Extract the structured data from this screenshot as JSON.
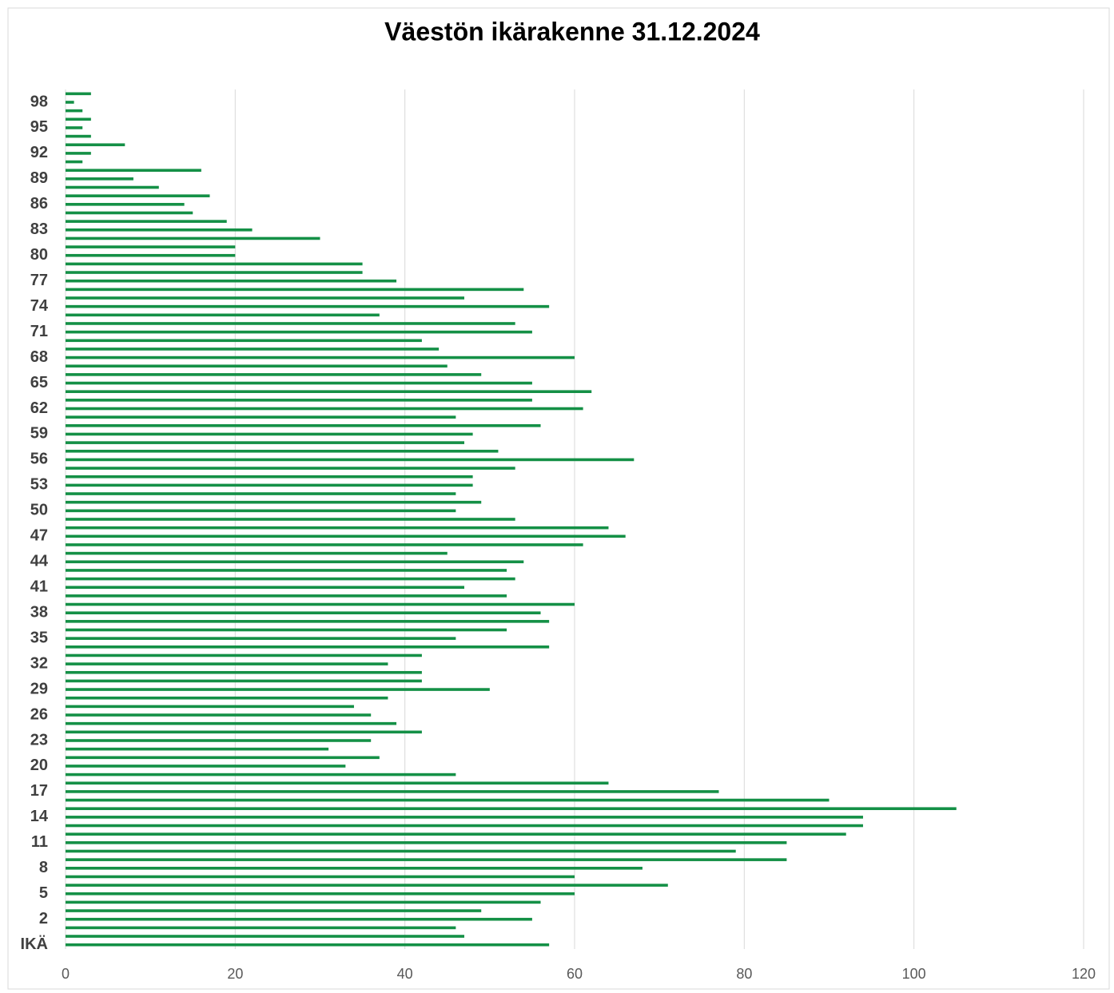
{
  "chart_data": {
    "type": "hbar",
    "title": "Väestön ikärakenne 31.12.2024",
    "categories": [
      "IKÄ",
      null,
      null,
      "2",
      null,
      null,
      "5",
      null,
      null,
      "8",
      null,
      null,
      "11",
      null,
      null,
      "14",
      null,
      null,
      "17",
      null,
      null,
      "20",
      null,
      null,
      "23",
      null,
      null,
      "26",
      null,
      null,
      "29",
      null,
      null,
      "32",
      null,
      null,
      "35",
      null,
      null,
      "38",
      null,
      null,
      "41",
      null,
      null,
      "44",
      null,
      null,
      "47",
      null,
      null,
      "50",
      null,
      null,
      "53",
      null,
      null,
      "56",
      null,
      null,
      "59",
      null,
      null,
      "62",
      null,
      null,
      "65",
      null,
      null,
      "68",
      null,
      null,
      "71",
      null,
      null,
      "74",
      null,
      null,
      "77",
      null,
      null,
      "80",
      null,
      null,
      "83",
      null,
      null,
      "86",
      null,
      null,
      "89",
      null,
      null,
      "92",
      null,
      null,
      "95",
      null,
      null,
      "98",
      null
    ],
    "values": [
      57,
      47,
      46,
      55,
      49,
      56,
      60,
      71,
      60,
      68,
      85,
      79,
      85,
      92,
      94,
      94,
      105,
      90,
      77,
      64,
      46,
      33,
      37,
      31,
      36,
      42,
      39,
      36,
      34,
      38,
      50,
      42,
      42,
      38,
      42,
      57,
      46,
      52,
      57,
      56,
      60,
      52,
      47,
      53,
      52,
      54,
      45,
      61,
      66,
      64,
      53,
      46,
      49,
      46,
      48,
      48,
      53,
      67,
      51,
      47,
      48,
      56,
      46,
      61,
      55,
      62,
      55,
      49,
      45,
      60,
      44,
      42,
      55,
      53,
      37,
      57,
      47,
      54,
      39,
      35,
      35,
      20,
      20,
      30,
      22,
      19,
      15,
      14,
      17,
      11,
      8,
      16,
      2,
      3,
      7,
      3,
      2,
      3,
      2,
      1,
      3
    ],
    "color": "#149046",
    "xlim": [
      0,
      120
    ],
    "xticks": [
      0,
      20,
      40,
      60,
      80,
      100,
      120
    ],
    "grid": true
  }
}
